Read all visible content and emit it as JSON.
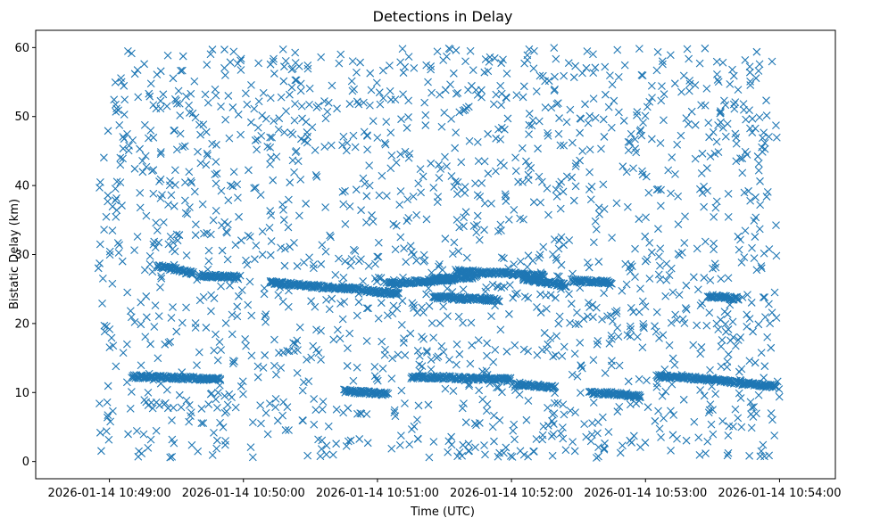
{
  "chart_data": {
    "type": "scatter",
    "title": "Detections in Delay",
    "xlabel": "Time (UTC)",
    "ylabel": "Bistatic Delay (km)",
    "marker": "x",
    "color": "#1f77b4",
    "xlim_seconds": [
      -33,
      325
    ],
    "ylim": [
      -2.5,
      62.5
    ],
    "x_start_time": "2026-01-14 10:49:00",
    "x_ticks": [
      {
        "value": 0,
        "label": "2026-01-14 10:49:00"
      },
      {
        "value": 60,
        "label": "2026-01-14 10:50:00"
      },
      {
        "value": 120,
        "label": "2026-01-14 10:51:00"
      },
      {
        "value": 180,
        "label": "2026-01-14 10:52:00"
      },
      {
        "value": 240,
        "label": "2026-01-14 10:53:00"
      },
      {
        "value": 300,
        "label": "2026-01-14 10:54:00"
      }
    ],
    "y_ticks": [
      0,
      10,
      20,
      30,
      40,
      50,
      60
    ],
    "data_x_range_seconds": [
      -5,
      300
    ],
    "data_y_range": [
      0.5,
      60
    ],
    "noise_point_count": 1700,
    "tracks": [
      {
        "name": "track-low-1",
        "x": [
          10,
          22,
          35,
          50
        ],
        "y": [
          12.3,
          12.2,
          12.1,
          11.9
        ]
      },
      {
        "name": "track-low-2",
        "x": [
          105,
          115,
          125
        ],
        "y": [
          10.2,
          10.0,
          9.8
        ]
      },
      {
        "name": "track-low-3",
        "x": [
          135,
          150,
          165,
          180
        ],
        "y": [
          12.2,
          12.2,
          12.0,
          11.9
        ]
      },
      {
        "name": "track-low-4",
        "x": [
          182,
          190,
          200
        ],
        "y": [
          11.3,
          11.0,
          10.7
        ]
      },
      {
        "name": "track-low-5",
        "x": [
          215,
          222,
          228
        ],
        "y": [
          10.0,
          9.9,
          9.8
        ]
      },
      {
        "name": "track-low-6",
        "x": [
          228,
          233,
          238
        ],
        "y": [
          9.8,
          9.6,
          9.4
        ]
      },
      {
        "name": "track-low-7",
        "x": [
          245,
          265,
          280,
          299
        ],
        "y": [
          12.4,
          12.0,
          11.5,
          10.9
        ]
      },
      {
        "name": "track-high-1",
        "x": [
          22,
          30,
          38
        ],
        "y": [
          28.3,
          27.8,
          27.2
        ]
      },
      {
        "name": "track-high-2",
        "x": [
          40,
          50,
          58
        ],
        "y": [
          27.0,
          26.8,
          26.6
        ]
      },
      {
        "name": "track-high-3",
        "x": [
          72,
          95,
          115
        ],
        "y": [
          26.0,
          25.3,
          24.9
        ]
      },
      {
        "name": "track-high-4",
        "x": [
          115,
          122,
          130
        ],
        "y": [
          24.8,
          24.5,
          24.3
        ]
      },
      {
        "name": "track-high-5",
        "x": [
          125,
          140,
          155
        ],
        "y": [
          25.8,
          26.1,
          26.4
        ]
      },
      {
        "name": "track-high-6",
        "x": [
          145,
          155,
          165
        ],
        "y": [
          26.4,
          26.6,
          26.8
        ]
      },
      {
        "name": "track-high-7",
        "x": [
          155,
          175,
          195
        ],
        "y": [
          27.6,
          27.3,
          26.9
        ]
      },
      {
        "name": "track-high-8",
        "x": [
          185,
          195,
          205
        ],
        "y": [
          26.5,
          26.0,
          25.5
        ]
      },
      {
        "name": "track-high-9",
        "x": [
          207,
          215,
          225
        ],
        "y": [
          26.2,
          26.1,
          26.0
        ]
      },
      {
        "name": "track-high-10",
        "x": [
          145,
          160,
          175
        ],
        "y": [
          23.8,
          23.6,
          23.4
        ]
      },
      {
        "name": "track-high-11",
        "x": [
          268,
          275,
          282
        ],
        "y": [
          24.0,
          23.8,
          23.6
        ]
      }
    ]
  }
}
